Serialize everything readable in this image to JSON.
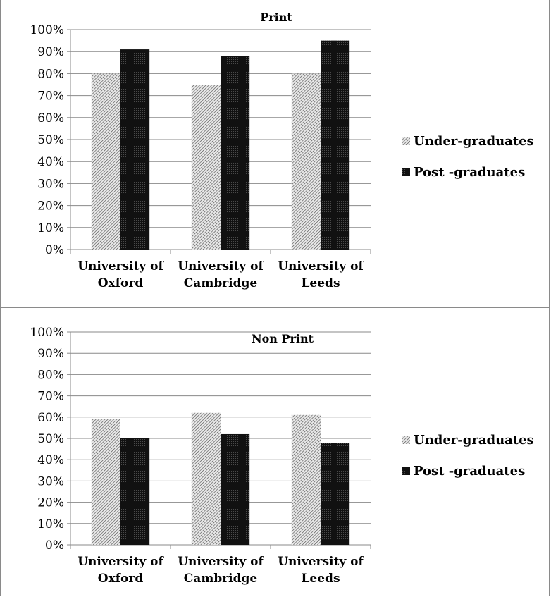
{
  "chart_data": [
    {
      "type": "bar",
      "title": "Print",
      "categories": [
        [
          "University of",
          "Oxford"
        ],
        [
          "University of",
          "Cambridge"
        ],
        [
          "University of",
          "Leeds"
        ]
      ],
      "series": [
        {
          "name": "Under-graduates",
          "values": [
            80,
            75,
            80
          ],
          "pattern": "hatch"
        },
        {
          "name": "Post -graduates",
          "values": [
            91,
            88,
            95
          ],
          "pattern": "dark"
        }
      ],
      "yticks": [
        "0%",
        "10%",
        "20%",
        "30%",
        "40%",
        "50%",
        "60%",
        "70%",
        "80%",
        "90%",
        "100%"
      ],
      "ylim": [
        0,
        100
      ],
      "grid": true,
      "legend": "right"
    },
    {
      "type": "bar",
      "title": "Non Print",
      "categories": [
        [
          "University of",
          "Oxford"
        ],
        [
          "University of",
          "Cambridge"
        ],
        [
          "University of",
          "Leeds"
        ]
      ],
      "series": [
        {
          "name": "Under-graduates",
          "values": [
            59,
            62,
            61
          ],
          "pattern": "hatch"
        },
        {
          "name": "Post -graduates",
          "values": [
            50,
            52,
            48
          ],
          "pattern": "dark"
        }
      ],
      "yticks": [
        "0%",
        "10%",
        "20%",
        "30%",
        "40%",
        "50%",
        "60%",
        "70%",
        "80%",
        "90%",
        "100%"
      ],
      "ylim": [
        0,
        100
      ],
      "grid": true,
      "legend": "right"
    }
  ]
}
